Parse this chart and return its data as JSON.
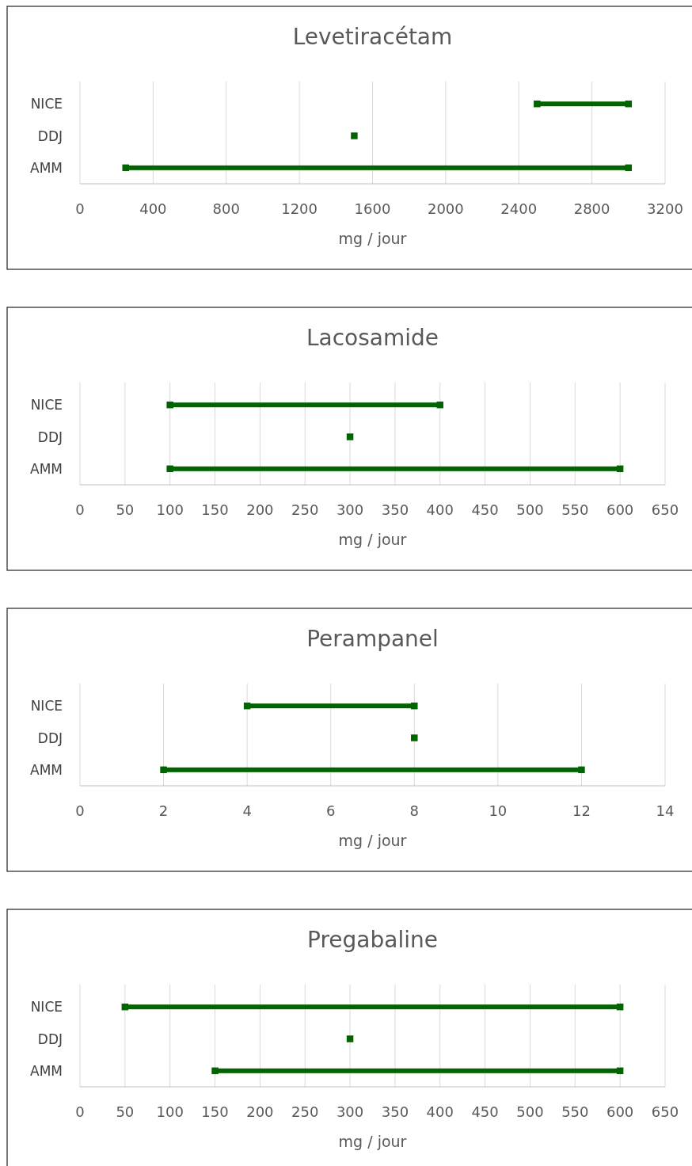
{
  "chart_data": [
    {
      "type": "bar",
      "title": "Levetiracétam",
      "xlabel": "mg / jour",
      "orientation": "horizontal",
      "categories": [
        "NICE",
        "DDJ",
        "AMM"
      ],
      "grid": "x",
      "marker": "square",
      "xlim": [
        0,
        3200
      ],
      "xticks": [
        0,
        400,
        800,
        1200,
        1600,
        2000,
        2400,
        2800,
        3200
      ],
      "series": [
        {
          "color": "#006400",
          "base": [
            2500,
            null,
            250
          ],
          "values": [
            500,
            null,
            2750
          ]
        },
        {
          "type": "scatter",
          "color": "#006400",
          "values": [
            2500,
            1500,
            250
          ]
        },
        {
          "type": "scatter",
          "color": "#006400",
          "values": [
            3000,
            null,
            3000
          ]
        }
      ]
    },
    {
      "type": "bar",
      "title": "Lacosamide",
      "xlabel": "mg / jour",
      "orientation": "horizontal",
      "categories": [
        "NICE",
        "DDJ",
        "AMM"
      ],
      "grid": "x",
      "marker": "square",
      "xlim": [
        0,
        650
      ],
      "xticks": [
        0,
        50,
        100,
        150,
        200,
        250,
        300,
        350,
        400,
        450,
        500,
        550,
        600,
        650
      ],
      "series": [
        {
          "color": "#006400",
          "base": [
            100,
            null,
            100
          ],
          "values": [
            300,
            null,
            500
          ]
        },
        {
          "type": "scatter",
          "color": "#006400",
          "values": [
            100,
            300,
            100
          ]
        },
        {
          "type": "scatter",
          "color": "#006400",
          "values": [
            400,
            null,
            600
          ]
        }
      ]
    },
    {
      "type": "bar",
      "title": "Perampanel",
      "xlabel": "mg / jour",
      "orientation": "horizontal",
      "categories": [
        "NICE",
        "DDJ",
        "AMM"
      ],
      "grid": "x",
      "marker": "square",
      "xlim": [
        0,
        14
      ],
      "xticks": [
        0,
        2,
        4,
        6,
        8,
        10,
        12,
        14
      ],
      "series": [
        {
          "color": "#006400",
          "base": [
            4,
            null,
            2
          ],
          "values": [
            4,
            null,
            10
          ]
        },
        {
          "type": "scatter",
          "color": "#006400",
          "values": [
            4,
            8,
            2
          ]
        },
        {
          "type": "scatter",
          "color": "#006400",
          "values": [
            8,
            null,
            12
          ]
        }
      ]
    },
    {
      "type": "bar",
      "title": "Pregabaline",
      "xlabel": "mg / jour",
      "orientation": "horizontal",
      "categories": [
        "NICE",
        "DDJ",
        "AMM"
      ],
      "grid": "x",
      "marker": "square",
      "xlim": [
        0,
        650
      ],
      "xticks": [
        0,
        50,
        100,
        150,
        200,
        250,
        300,
        350,
        400,
        450,
        500,
        550,
        600,
        650
      ],
      "series": [
        {
          "color": "#006400",
          "base": [
            50,
            null,
            150
          ],
          "values": [
            550,
            null,
            450
          ]
        },
        {
          "type": "scatter",
          "color": "#006400",
          "values": [
            50,
            300,
            150
          ]
        },
        {
          "type": "scatter",
          "color": "#006400",
          "values": [
            600,
            null,
            600
          ]
        }
      ]
    }
  ]
}
